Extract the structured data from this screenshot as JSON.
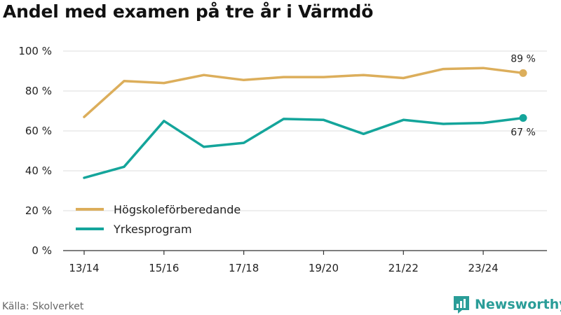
{
  "title": "Andel med examen på tre år i Värmdö",
  "source": "Källa: Skolverket",
  "brand": {
    "name": "Newsworthy",
    "icon": "bar-chart-logo-icon",
    "color": "#2a9d98"
  },
  "chart_data": {
    "type": "line",
    "title": "Andel med examen på tre år i Värmdö",
    "xlabel": "",
    "ylabel": "",
    "ylim": [
      0,
      100
    ],
    "y_ticks": [
      "0 %",
      "20 %",
      "40 %",
      "60 %",
      "80 %",
      "100 %"
    ],
    "y_tick_values": [
      0,
      20,
      40,
      60,
      80,
      100
    ],
    "x_ticks": [
      "13/14",
      "15/16",
      "17/18",
      "19/20",
      "21/22",
      "23/24"
    ],
    "x_tick_positions": [
      0,
      2,
      4,
      6,
      8,
      10
    ],
    "x": [
      "13/14",
      "14/15",
      "15/16",
      "16/17",
      "17/18",
      "18/19",
      "19/20",
      "20/21",
      "21/22",
      "22/23",
      "23/24",
      "24/25"
    ],
    "grid": true,
    "legend_position": "bottom-left",
    "series": [
      {
        "name": "Högskoleförberedande",
        "color": "#dcae5b",
        "values": [
          67,
          85,
          84,
          88,
          85.5,
          87,
          87,
          88,
          86.5,
          91,
          91.5,
          89
        ],
        "end_label": "89 %"
      },
      {
        "name": "Yrkesprogram",
        "color": "#14a59b",
        "values": [
          36.5,
          42,
          65,
          52,
          54,
          66,
          65.5,
          58.5,
          65.5,
          63.5,
          64,
          66.5
        ],
        "end_label": "67 %"
      }
    ]
  }
}
